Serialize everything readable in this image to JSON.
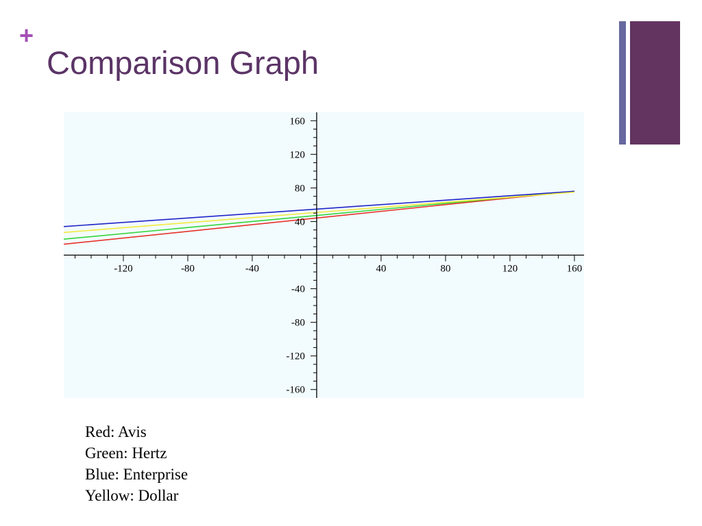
{
  "slide": {
    "title": "Comparison Graph",
    "bullet_glyph": "+",
    "colors": {
      "title": "#5b3466",
      "bullet": "#a44fb5",
      "accent_thin": "#6868a0",
      "accent_thick": "#633460",
      "chart_bg": "#f2fbfd"
    }
  },
  "chart_data": {
    "type": "line",
    "title": "",
    "xlabel": "",
    "ylabel": "",
    "xlim": [
      -157,
      166
    ],
    "ylim": [
      -170,
      170
    ],
    "x_ticks": [
      -120,
      -80,
      -40,
      40,
      80,
      120,
      160
    ],
    "x_tick_labels": [
      "-120",
      "-80",
      "-40",
      "40",
      "80",
      "120",
      "160"
    ],
    "y_ticks": [
      160,
      120,
      80,
      40,
      -40,
      -80,
      -120,
      -160
    ],
    "y_tick_labels": [
      "160",
      "120",
      "80",
      "40",
      "-40",
      "-80",
      "-120",
      "-160"
    ],
    "grid": false,
    "series": [
      {
        "name": "Avis",
        "color": "#e8312a",
        "x": [
          -157,
          160
        ],
        "y": [
          13,
          76
        ]
      },
      {
        "name": "Hertz",
        "color": "#34d43a",
        "x": [
          -157,
          160
        ],
        "y": [
          19,
          76
        ]
      },
      {
        "name": "Enterprise",
        "color": "#1f24c8",
        "x": [
          -157,
          160
        ],
        "y": [
          34,
          76
        ]
      },
      {
        "name": "Dollar",
        "color": "#f2ea3a",
        "x": [
          -157,
          160
        ],
        "y": [
          27,
          75
        ]
      }
    ]
  },
  "legend": [
    {
      "label": "Red: Avis"
    },
    {
      "label": "Green: Hertz"
    },
    {
      "label": "Blue: Enterprise"
    },
    {
      "label": "Yellow: Dollar"
    }
  ]
}
